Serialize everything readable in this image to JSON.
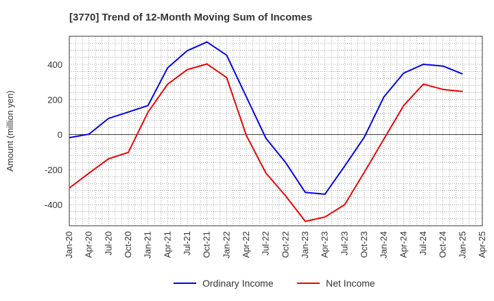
{
  "chart_data": {
    "type": "line",
    "title": "[3770]  Trend of 12-Month Moving Sum of Incomes",
    "xlabel": "",
    "ylabel": "Amount (million yen)",
    "ylim": [
      -520,
      560
    ],
    "yticks": [
      -400,
      -200,
      0,
      200,
      400
    ],
    "categories": [
      "Jan-20",
      "Apr-20",
      "Jul-20",
      "Oct-20",
      "Jan-21",
      "Apr-21",
      "Jul-21",
      "Oct-21",
      "Jan-22",
      "Apr-22",
      "Jul-22",
      "Oct-22",
      "Jan-23",
      "Apr-23",
      "Jul-23",
      "Oct-23",
      "Jan-24",
      "Apr-24",
      "Jul-24",
      "Oct-24",
      "Jan-25",
      "Apr-25"
    ],
    "grid": true,
    "legend": "bottom",
    "series": [
      {
        "name": "Ordinary Income",
        "color": "#0000ee",
        "values": [
          -18,
          2,
          92,
          128,
          165,
          380,
          478,
          527,
          452,
          215,
          -22,
          -160,
          -330,
          -340,
          -180,
          -15,
          215,
          350,
          400,
          390,
          345,
          null
        ]
      },
      {
        "name": "Net Income",
        "color": "#ee0000",
        "values": [
          -305,
          -220,
          -138,
          -102,
          127,
          287,
          370,
          402,
          325,
          -5,
          -220,
          -350,
          -495,
          -470,
          -400,
          -215,
          -25,
          165,
          287,
          257,
          245,
          null
        ]
      }
    ]
  }
}
